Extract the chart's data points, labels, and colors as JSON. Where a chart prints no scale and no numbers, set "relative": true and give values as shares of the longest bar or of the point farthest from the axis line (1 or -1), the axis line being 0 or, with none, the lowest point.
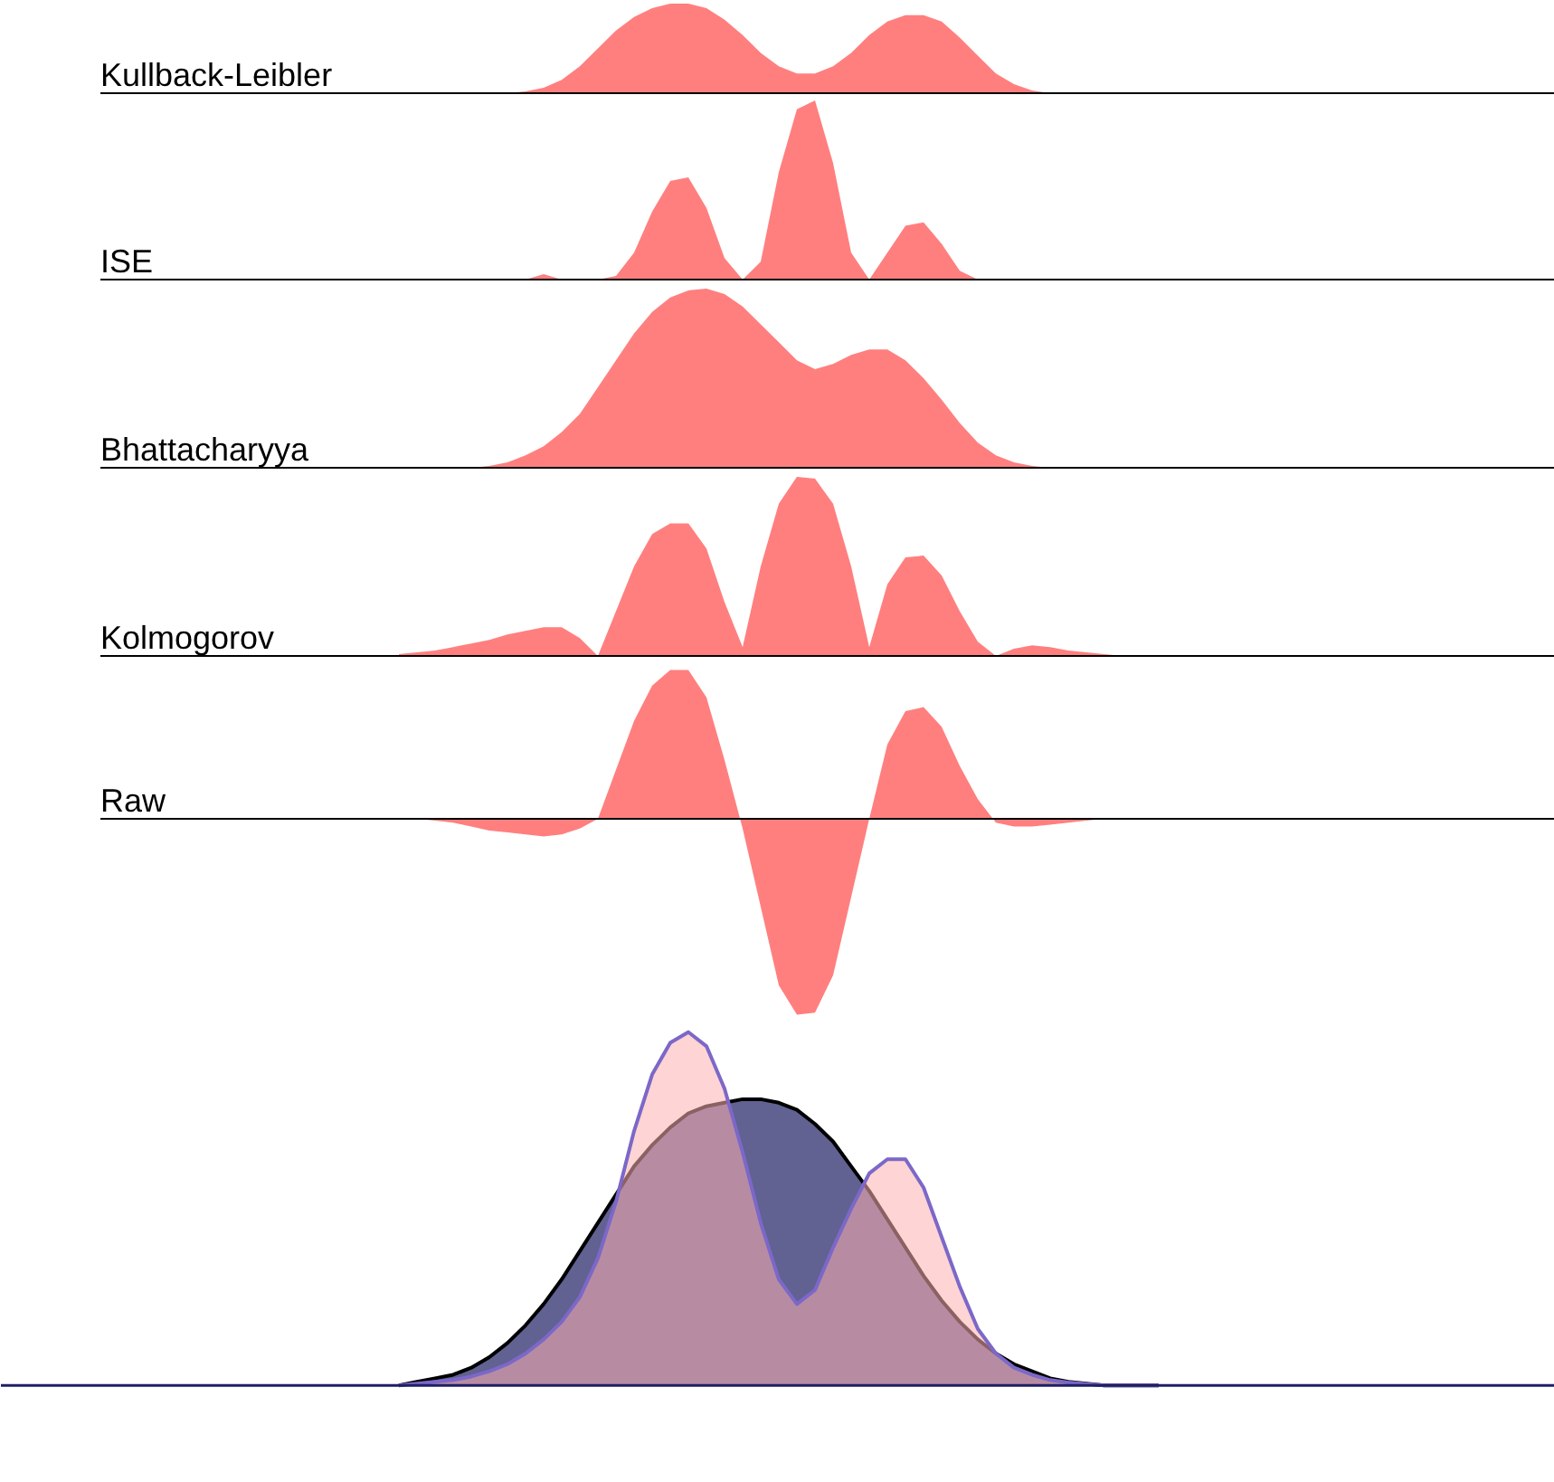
{
  "chart_data": [
    {
      "type": "area",
      "relative": true,
      "categories": [
        null,
        null,
        null,
        null,
        null,
        null,
        null,
        null,
        null,
        null,
        null,
        null,
        null,
        null,
        null,
        null,
        null,
        null,
        null,
        null,
        null,
        null,
        null,
        null,
        null,
        null,
        null,
        null,
        null,
        null,
        null,
        null,
        null,
        null,
        null,
        null,
        null,
        null,
        null,
        null,
        null,
        null,
        null
      ],
      "series": [
        {
          "name": "Kullback-Leibler",
          "color": "#ff7f7f",
          "values": [
            0,
            0,
            0,
            0,
            0,
            0,
            0,
            0.02,
            0.06,
            0.15,
            0.3,
            0.5,
            0.7,
            0.85,
            0.95,
            1.0,
            1.0,
            0.95,
            0.82,
            0.65,
            0.45,
            0.3,
            0.22,
            0.22,
            0.3,
            0.45,
            0.65,
            0.8,
            0.87,
            0.87,
            0.8,
            0.62,
            0.42,
            0.22,
            0.1,
            0.03,
            0,
            0,
            0,
            0,
            0,
            0,
            0
          ]
        }
      ]
    },
    {
      "type": "area",
      "relative": true,
      "categories": [
        null,
        null,
        null,
        null,
        null,
        null,
        null,
        null,
        null,
        null,
        null,
        null,
        null,
        null,
        null,
        null,
        null,
        null,
        null,
        null,
        null,
        null,
        null,
        null,
        null,
        null,
        null,
        null,
        null,
        null,
        null,
        null,
        null,
        null,
        null,
        null,
        null,
        null,
        null,
        null,
        null,
        null,
        null
      ],
      "series": [
        {
          "name": "ISE",
          "color": "#ff7f7f",
          "values": [
            0,
            0,
            0,
            0,
            0,
            0,
            0,
            0,
            0.03,
            0,
            0,
            0,
            0.02,
            0.15,
            0.38,
            0.55,
            0.57,
            0.4,
            0.12,
            0,
            0.1,
            0.6,
            0.95,
            1.0,
            0.65,
            0.15,
            0,
            0.15,
            0.3,
            0.32,
            0.2,
            0.05,
            0,
            0,
            0,
            0,
            0,
            0,
            0,
            0,
            0,
            0,
            0
          ]
        }
      ]
    },
    {
      "type": "area",
      "relative": true,
      "categories": [
        null,
        null,
        null,
        null,
        null,
        null,
        null,
        null,
        null,
        null,
        null,
        null,
        null,
        null,
        null,
        null,
        null,
        null,
        null,
        null,
        null,
        null,
        null,
        null,
        null,
        null,
        null,
        null,
        null,
        null,
        null,
        null,
        null,
        null,
        null,
        null,
        null,
        null,
        null,
        null,
        null,
        null,
        null
      ],
      "series": [
        {
          "name": "Bhattacharyya",
          "color": "#ff7f7f",
          "values": [
            0,
            0,
            0,
            0,
            0,
            0.01,
            0.03,
            0.07,
            0.12,
            0.2,
            0.3,
            0.45,
            0.6,
            0.75,
            0.87,
            0.95,
            0.99,
            1.0,
            0.97,
            0.9,
            0.8,
            0.7,
            0.6,
            0.55,
            0.58,
            0.63,
            0.66,
            0.66,
            0.6,
            0.5,
            0.38,
            0.25,
            0.14,
            0.07,
            0.03,
            0.01,
            0,
            0,
            0,
            0,
            0,
            0,
            0
          ]
        }
      ]
    },
    {
      "type": "area",
      "relative": true,
      "categories": [
        null,
        null,
        null,
        null,
        null,
        null,
        null,
        null,
        null,
        null,
        null,
        null,
        null,
        null,
        null,
        null,
        null,
        null,
        null,
        null,
        null,
        null,
        null,
        null,
        null,
        null,
        null,
        null,
        null,
        null,
        null,
        null,
        null,
        null,
        null,
        null,
        null,
        null,
        null,
        null,
        null,
        null,
        null
      ],
      "series": [
        {
          "name": "Kolmogorov",
          "color": "#ff7f7f",
          "values": [
            0.01,
            0.02,
            0.03,
            0.05,
            0.07,
            0.09,
            0.12,
            0.14,
            0.16,
            0.16,
            0.1,
            0,
            0.25,
            0.5,
            0.68,
            0.74,
            0.74,
            0.6,
            0.3,
            0.05,
            0.5,
            0.85,
            1.0,
            0.99,
            0.85,
            0.5,
            0.05,
            0.4,
            0.55,
            0.56,
            0.45,
            0.25,
            0.08,
            0,
            0.04,
            0.06,
            0.05,
            0.03,
            0.02,
            0.01,
            0,
            0,
            0
          ]
        }
      ]
    },
    {
      "type": "area",
      "relative": true,
      "categories": [
        null,
        null,
        null,
        null,
        null,
        null,
        null,
        null,
        null,
        null,
        null,
        null,
        null,
        null,
        null,
        null,
        null,
        null,
        null,
        null,
        null,
        null,
        null,
        null,
        null,
        null,
        null,
        null,
        null,
        null,
        null,
        null,
        null,
        null,
        null,
        null,
        null,
        null,
        null,
        null,
        null,
        null,
        null
      ],
      "series": [
        {
          "name": "Raw",
          "color": "#ff7f7f",
          "values": [
            0,
            0,
            -0.01,
            -0.02,
            -0.04,
            -0.06,
            -0.07,
            -0.08,
            -0.09,
            -0.08,
            -0.05,
            0,
            0.25,
            0.5,
            0.68,
            0.76,
            0.76,
            0.62,
            0.3,
            -0.05,
            -0.45,
            -0.85,
            -1.0,
            -0.99,
            -0.8,
            -0.4,
            0,
            0.38,
            0.55,
            0.57,
            0.47,
            0.27,
            0.1,
            -0.02,
            -0.04,
            -0.04,
            -0.03,
            -0.02,
            -0.01,
            0,
            0,
            0,
            0
          ]
        }
      ]
    },
    {
      "type": "area",
      "relative": true,
      "categories": [
        null,
        null,
        null,
        null,
        null,
        null,
        null,
        null,
        null,
        null,
        null,
        null,
        null,
        null,
        null,
        null,
        null,
        null,
        null,
        null,
        null,
        null,
        null,
        null,
        null,
        null,
        null,
        null,
        null,
        null,
        null,
        null,
        null,
        null,
        null,
        null,
        null,
        null,
        null,
        null,
        null,
        null,
        null
      ],
      "series": [
        {
          "color": "#1e1e64",
          "values": [
            0,
            0.01,
            0.02,
            0.03,
            0.05,
            0.08,
            0.12,
            0.17,
            0.23,
            0.3,
            0.38,
            0.46,
            0.54,
            0.62,
            0.68,
            0.73,
            0.77,
            0.79,
            0.8,
            0.81,
            0.81,
            0.8,
            0.78,
            0.74,
            0.69,
            0.62,
            0.55,
            0.47,
            0.39,
            0.31,
            0.24,
            0.18,
            0.13,
            0.09,
            0.06,
            0.04,
            0.02,
            0.01,
            0.005,
            0,
            0,
            0,
            0
          ]
        },
        {
          "color": "#ffb0b0",
          "values": [
            0,
            0.005,
            0.01,
            0.015,
            0.025,
            0.04,
            0.06,
            0.09,
            0.13,
            0.18,
            0.25,
            0.36,
            0.52,
            0.72,
            0.88,
            0.97,
            1.0,
            0.96,
            0.84,
            0.66,
            0.46,
            0.3,
            0.23,
            0.27,
            0.39,
            0.5,
            0.6,
            0.64,
            0.64,
            0.56,
            0.42,
            0.28,
            0.16,
            0.09,
            0.05,
            0.03,
            0.015,
            0.008,
            0.004,
            0,
            0,
            0,
            0
          ]
        }
      ]
    }
  ]
}
